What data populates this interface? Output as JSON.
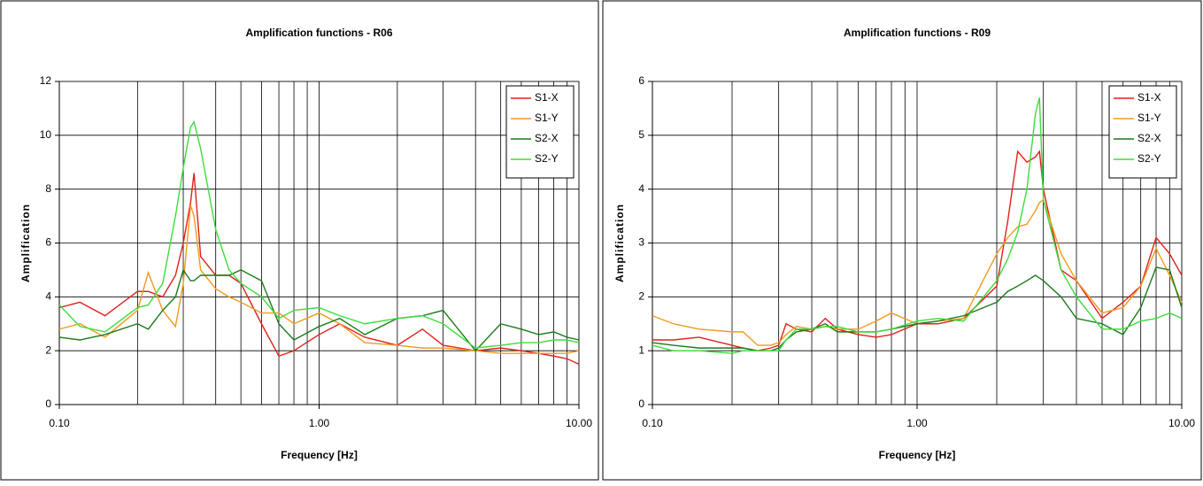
{
  "chart_data": [
    {
      "type": "line",
      "title": "Amplification functions - R06",
      "xlabel": "Frequency [Hz]",
      "ylabel": "Amplification",
      "log_x": true,
      "grid": true,
      "legend": "upper right",
      "xlim": [
        0.1,
        10
      ],
      "ylim": [
        0,
        12
      ],
      "xticks": [
        {
          "value": 0.1,
          "label": "0.10"
        },
        {
          "value": 1,
          "label": "1.00"
        },
        {
          "value": 10,
          "label": "10.00"
        }
      ],
      "xgrid": [
        0.1,
        0.2,
        0.3,
        0.4,
        0.5,
        0.6,
        0.7,
        0.8,
        0.9,
        1,
        2,
        3,
        4,
        5,
        6,
        7,
        8,
        9,
        10
      ],
      "yticks": [
        0,
        2,
        4,
        6,
        8,
        10,
        12
      ],
      "x": [
        0.1,
        0.12,
        0.15,
        0.2,
        0.22,
        0.25,
        0.28,
        0.3,
        0.32,
        0.33,
        0.35,
        0.4,
        0.45,
        0.5,
        0.6,
        0.7,
        0.8,
        1,
        1.2,
        1.5,
        2,
        2.5,
        3,
        4,
        5,
        6,
        7,
        8,
        9,
        10
      ],
      "series": [
        {
          "name": "S1-X",
          "color": "#e0201b",
          "values": [
            3.6,
            3.8,
            3.3,
            4.2,
            4.2,
            4.0,
            4.8,
            6.0,
            7.5,
            8.6,
            5.5,
            4.8,
            4.8,
            4.5,
            3.0,
            1.8,
            2.0,
            2.6,
            3.0,
            2.5,
            2.2,
            2.8,
            2.2,
            2.0,
            2.1,
            2.0,
            1.9,
            1.8,
            1.7,
            1.5
          ]
        },
        {
          "name": "S1-Y",
          "color": "#f29a1e",
          "values": [
            2.8,
            3.0,
            2.5,
            3.5,
            4.9,
            3.5,
            2.9,
            4.5,
            7.4,
            7.0,
            5.0,
            4.3,
            4.0,
            3.8,
            3.4,
            3.4,
            3.0,
            3.4,
            3.0,
            2.3,
            2.2,
            2.1,
            2.1,
            2.0,
            1.9,
            1.9,
            1.9,
            1.9,
            1.9,
            2.0
          ]
        },
        {
          "name": "S2-X",
          "color": "#1a7a1a",
          "values": [
            2.5,
            2.4,
            2.6,
            3.0,
            2.8,
            3.5,
            4.0,
            5.0,
            4.6,
            4.6,
            4.8,
            4.8,
            4.8,
            5.0,
            4.6,
            3.0,
            2.4,
            2.9,
            3.2,
            2.6,
            3.2,
            3.3,
            3.5,
            2.0,
            3.0,
            2.8,
            2.6,
            2.7,
            2.5,
            2.4
          ]
        },
        {
          "name": "S2-Y",
          "color": "#3ddc3d",
          "values": [
            3.7,
            2.9,
            2.7,
            3.6,
            3.7,
            4.5,
            7.0,
            8.8,
            10.3,
            10.5,
            9.5,
            6.5,
            5.0,
            4.5,
            4.0,
            3.2,
            3.5,
            3.6,
            3.3,
            3.0,
            3.2,
            3.3,
            3.0,
            2.1,
            2.2,
            2.3,
            2.3,
            2.4,
            2.4,
            2.3
          ]
        }
      ]
    },
    {
      "type": "line",
      "title": "Amplification functions - R09",
      "xlabel": "Frequency [Hz]",
      "ylabel": "Amplification",
      "log_x": true,
      "grid": true,
      "legend": "upper right",
      "xlim": [
        0.1,
        10
      ],
      "ylim": [
        0,
        6
      ],
      "xticks": [
        {
          "value": 0.1,
          "label": "0.10"
        },
        {
          "value": 1,
          "label": "1.00"
        },
        {
          "value": 10,
          "label": "10.00"
        }
      ],
      "xgrid": [
        0.1,
        0.2,
        0.3,
        0.4,
        0.5,
        0.6,
        0.7,
        0.8,
        0.9,
        1,
        2,
        3,
        4,
        5,
        6,
        7,
        8,
        9,
        10
      ],
      "yticks": [
        0,
        1,
        2,
        3,
        4,
        5,
        6
      ],
      "x": [
        0.1,
        0.12,
        0.15,
        0.2,
        0.22,
        0.25,
        0.28,
        0.3,
        0.32,
        0.35,
        0.4,
        0.45,
        0.5,
        0.6,
        0.7,
        0.8,
        1,
        1.2,
        1.5,
        2,
        2.2,
        2.4,
        2.6,
        2.8,
        2.9,
        3,
        3.5,
        4,
        5,
        6,
        7,
        8,
        9,
        10
      ],
      "series": [
        {
          "name": "S1-X",
          "color": "#e0201b",
          "values": [
            1.2,
            1.2,
            1.25,
            1.1,
            1.05,
            1.0,
            1.05,
            1.1,
            1.5,
            1.4,
            1.35,
            1.6,
            1.4,
            1.3,
            1.25,
            1.3,
            1.5,
            1.5,
            1.6,
            2.2,
            3.4,
            4.7,
            4.5,
            4.6,
            4.7,
            4.0,
            2.5,
            2.3,
            1.6,
            1.9,
            2.2,
            3.1,
            2.8,
            2.4
          ]
        },
        {
          "name": "S1-Y",
          "color": "#f29a1e",
          "values": [
            1.65,
            1.5,
            1.4,
            1.35,
            1.35,
            1.1,
            1.1,
            1.15,
            1.3,
            1.45,
            1.4,
            1.45,
            1.4,
            1.4,
            1.55,
            1.7,
            1.5,
            1.55,
            1.6,
            2.8,
            3.1,
            3.3,
            3.35,
            3.6,
            3.75,
            3.8,
            2.8,
            2.3,
            1.7,
            1.8,
            2.2,
            2.9,
            2.4,
            1.9
          ]
        },
        {
          "name": "S2-X",
          "color": "#1a7a1a",
          "values": [
            1.15,
            1.1,
            1.05,
            1.05,
            1.05,
            1.0,
            1.0,
            1.05,
            1.2,
            1.35,
            1.4,
            1.5,
            1.35,
            1.35,
            1.35,
            1.4,
            1.5,
            1.55,
            1.65,
            1.9,
            2.1,
            2.2,
            2.3,
            2.4,
            2.35,
            2.3,
            2.0,
            1.6,
            1.5,
            1.3,
            1.8,
            2.55,
            2.5,
            1.8
          ]
        },
        {
          "name": "S2-Y",
          "color": "#3ddc3d",
          "values": [
            1.1,
            1.0,
            1.0,
            0.95,
            1.0,
            1.0,
            1.0,
            1.0,
            1.2,
            1.4,
            1.4,
            1.45,
            1.45,
            1.35,
            1.35,
            1.4,
            1.55,
            1.6,
            1.55,
            2.3,
            2.7,
            3.2,
            4.0,
            5.4,
            5.7,
            3.8,
            2.5,
            2.0,
            1.4,
            1.4,
            1.55,
            1.6,
            1.7,
            1.6
          ]
        }
      ]
    }
  ]
}
